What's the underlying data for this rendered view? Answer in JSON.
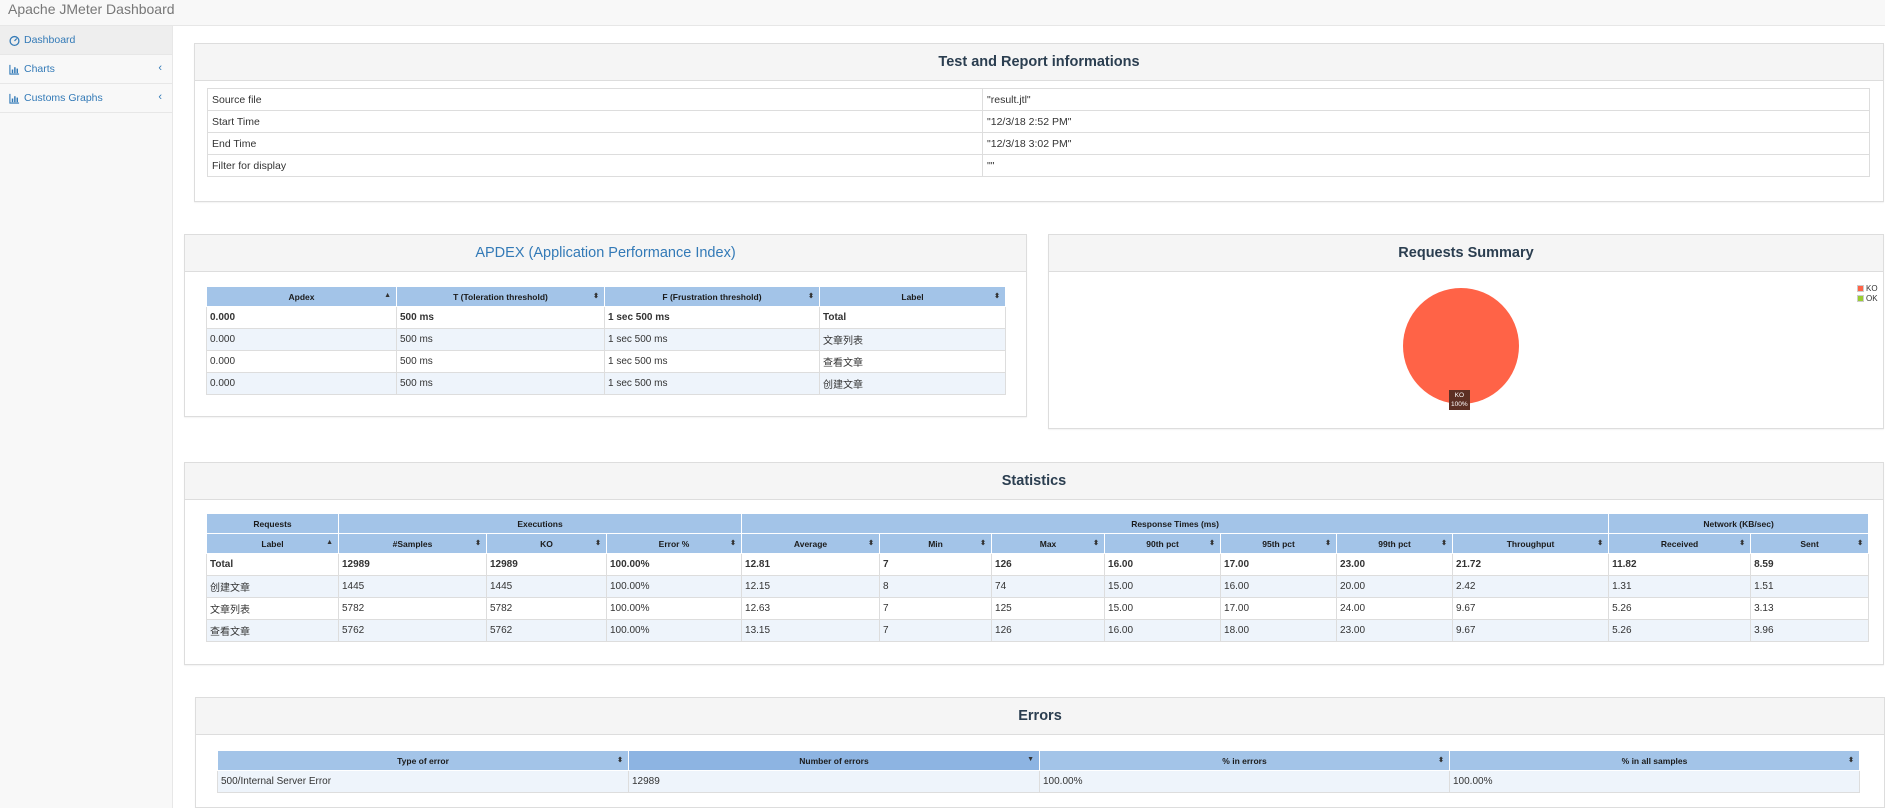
{
  "app": {
    "title": "Apache JMeter Dashboard"
  },
  "sidebar": {
    "items": [
      {
        "label": "Dashboard",
        "icon": "dashboard-icon",
        "active": true
      },
      {
        "label": "Charts",
        "icon": "bar-chart-icon",
        "chevron": "‹"
      },
      {
        "label": "Customs Graphs",
        "icon": "bar-chart-icon",
        "chevron": "‹"
      }
    ]
  },
  "report_info": {
    "title": "Test and Report informations",
    "rows": [
      {
        "key": "Source file",
        "value": "\"result.jtl\""
      },
      {
        "key": "Start Time",
        "value": "\"12/3/18 2:52 PM\""
      },
      {
        "key": "End Time",
        "value": "\"12/3/18 3:02 PM\""
      },
      {
        "key": "Filter for display",
        "value": "\"\""
      }
    ]
  },
  "apdex": {
    "title": "APDEX (Application Performance Index)",
    "headers": [
      "Apdex",
      "T (Toleration threshold)",
      "F (Frustration threshold)",
      "Label"
    ],
    "rows": [
      [
        "0.000",
        "500 ms",
        "1 sec 500 ms",
        "Total"
      ],
      [
        "0.000",
        "500 ms",
        "1 sec 500 ms",
        "文章列表"
      ],
      [
        "0.000",
        "500 ms",
        "1 sec 500 ms",
        "查看文章"
      ],
      [
        "0.000",
        "500 ms",
        "1 sec 500 ms",
        "创建文章"
      ]
    ]
  },
  "requests_summary": {
    "title": "Requests Summary",
    "legend": [
      {
        "label": "KO",
        "color": "#ff6347"
      },
      {
        "label": "OK",
        "color": "#9acd32"
      }
    ],
    "slice_label": "KO",
    "slice_percent": "100%"
  },
  "chart_data": {
    "type": "pie",
    "categories": [
      "KO",
      "OK"
    ],
    "values": [
      100,
      0
    ],
    "colors": [
      "#ff6347",
      "#9acd32"
    ],
    "title": "Requests Summary",
    "legend": "top-right"
  },
  "statistics": {
    "title": "Statistics",
    "groups": [
      "Requests",
      "Executions",
      "Response Times (ms)",
      "Network (KB/sec)"
    ],
    "headers": [
      "Label",
      "#Samples",
      "KO",
      "Error %",
      "Average",
      "Min",
      "Max",
      "90th pct",
      "95th pct",
      "99th pct",
      "Throughput",
      "Received",
      "Sent"
    ],
    "rows": [
      [
        "Total",
        "12989",
        "12989",
        "100.00%",
        "12.81",
        "7",
        "126",
        "16.00",
        "17.00",
        "23.00",
        "21.72",
        "11.82",
        "8.59"
      ],
      [
        "创建文章",
        "1445",
        "1445",
        "100.00%",
        "12.15",
        "8",
        "74",
        "15.00",
        "16.00",
        "20.00",
        "2.42",
        "1.31",
        "1.51"
      ],
      [
        "文章列表",
        "5782",
        "5782",
        "100.00%",
        "12.63",
        "7",
        "125",
        "15.00",
        "17.00",
        "24.00",
        "9.67",
        "5.26",
        "3.13"
      ],
      [
        "查看文章",
        "5762",
        "5762",
        "100.00%",
        "13.15",
        "7",
        "126",
        "16.00",
        "18.00",
        "23.00",
        "9.67",
        "5.26",
        "3.96"
      ]
    ]
  },
  "errors": {
    "title": "Errors",
    "headers": [
      "Type of error",
      "Number of errors",
      "% in errors",
      "% in all samples"
    ],
    "rows": [
      [
        "500/Internal Server Error",
        "12989",
        "100.00%",
        "100.00%"
      ]
    ]
  },
  "icons": {
    "sort_both": "⬍",
    "sort_asc": "▲",
    "sort_desc": "▼"
  }
}
